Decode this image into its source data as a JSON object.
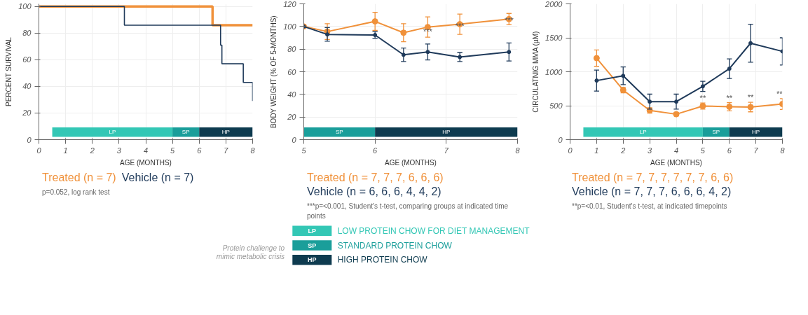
{
  "chart_data": [
    {
      "type": "step",
      "xlabel": "AGE (MONTHS)",
      "ylabel": "PERCENT SURVIVAL",
      "xlim": [
        0,
        8
      ],
      "xticks": [
        0,
        1,
        2,
        3,
        4,
        5,
        6,
        7,
        8
      ],
      "ylim": [
        0,
        102
      ],
      "yticks": [
        0,
        20,
        40,
        60,
        80,
        100
      ],
      "grid": true,
      "legend": "bottom",
      "series": [
        {
          "name": "Treated (n = 7)",
          "color": "#f0913a",
          "x": [
            0,
            6.5,
            8
          ],
          "values": [
            100,
            86,
            86
          ]
        },
        {
          "name": "Vehicle (n = 7)",
          "color": "#1f3a5a",
          "x": [
            0,
            3.2,
            6.8,
            6.85,
            7.65,
            8
          ],
          "values": [
            100,
            86,
            71,
            57,
            43,
            29
          ]
        }
      ],
      "bands": [
        {
          "axis": "x",
          "from": 0.5,
          "to": 5,
          "label": "LP",
          "color": "#33c7b5"
        },
        {
          "axis": "x",
          "from": 5,
          "to": 6,
          "label": "SP",
          "color": "#1a9e9a"
        },
        {
          "axis": "x",
          "from": 6,
          "to": 8,
          "label": "HP",
          "color": "#0e3b4f"
        }
      ],
      "annotations": [
        "p=0.052, log rank test"
      ]
    },
    {
      "type": "line",
      "xlabel": "AGE (MONTHS)",
      "ylabel": "BODY WEIGHT (% OF 5-MONTHS)",
      "marker": "circle",
      "xlim": [
        5,
        8
      ],
      "xticks": [
        5,
        6,
        7,
        8
      ],
      "ylim": [
        0,
        120
      ],
      "yticks": [
        0,
        20,
        40,
        60,
        80,
        100,
        120
      ],
      "grid": true,
      "legend": "bottom",
      "x": [
        5,
        5.33,
        6,
        6.4,
        6.74,
        7.19,
        7.88
      ],
      "series": [
        {
          "name": "Treated (n = 7, 7, 7, 6, 6, 6)",
          "color": "#f0913a",
          "values": [
            100,
            95.5,
            104.5,
            94.5,
            99.5,
            102,
            106.5
          ],
          "errors": [
            null,
            7,
            8,
            8,
            9,
            9,
            5
          ]
        },
        {
          "name": "Vehicle (n = 6, 6, 6, 4, 4, 2)",
          "color": "#1f3a5a",
          "values": [
            100,
            93,
            92.5,
            75,
            77.5,
            73,
            77.5
          ],
          "errors": [
            null,
            6,
            3,
            6,
            7,
            4,
            8
          ]
        }
      ],
      "bands": [
        {
          "axis": "x",
          "from": 5,
          "to": 6,
          "label": "SP",
          "color": "#1a9e9a"
        },
        {
          "axis": "x",
          "from": 6,
          "to": 8,
          "label": "HP",
          "color": "#0e3b4f"
        }
      ],
      "annotations": [
        {
          "text": "***",
          "x": 6.74,
          "y": 91
        },
        {
          "text": "***",
          "x": 7.19,
          "y": 96
        },
        {
          "text": "***",
          "x": 7.88,
          "y": 101
        },
        "***p=<0.001, Student's t-test, comparing groups at indicated time points"
      ]
    },
    {
      "type": "line",
      "xlabel": "AGE (MONTHS)",
      "ylabel": "CIRCULATNIG MMA (µM)",
      "marker": "circle",
      "xlim": [
        0,
        8
      ],
      "xticks": [
        0,
        1,
        2,
        3,
        4,
        5,
        6,
        7,
        8
      ],
      "ylim": [
        0,
        2000
      ],
      "yticks": [
        0,
        500,
        1000,
        1500,
        2000
      ],
      "grid": true,
      "legend": "bottom",
      "x": [
        1,
        2,
        3,
        4,
        5,
        6,
        6.8,
        8
      ],
      "series": [
        {
          "name": "Treated (n = 7, 7, 7, 7, 7, 7, 6, 6)",
          "color": "#f0913a",
          "values": [
            1200,
            730,
            430,
            375,
            495,
            485,
            480,
            525
          ],
          "errors": [
            120,
            40,
            40,
            25,
            45,
            60,
            70,
            80
          ]
        },
        {
          "name": "Vehicle (n = 7, 7, 7, 6, 6, 6, 4, 2)",
          "color": "#1f3a5a",
          "values": [
            870,
            940,
            560,
            560,
            785,
            1045,
            1420,
            1300
          ],
          "errors": [
            155,
            130,
            110,
            110,
            75,
            145,
            280,
            200
          ]
        }
      ],
      "bands": [
        {
          "axis": "x",
          "from": 0.5,
          "to": 5,
          "label": "LP",
          "color": "#33c7b5"
        },
        {
          "axis": "x",
          "from": 5,
          "to": 6,
          "label": "SP",
          "color": "#1a9e9a"
        },
        {
          "axis": "x",
          "from": 6,
          "to": 8,
          "label": "HP",
          "color": "#0e3b4f"
        }
      ],
      "annotations": [
        {
          "text": "**",
          "x": 5,
          "y": 540
        },
        {
          "text": "**",
          "x": 6,
          "y": 545
        },
        {
          "text": "**",
          "x": 6.8,
          "y": 550
        },
        {
          "text": "**",
          "x": 8,
          "y": 605
        },
        "**p=<0.01, Student's t-test, at indicated timepoints"
      ]
    },
    {
      "type": "other",
      "categories": [
        "LP",
        "SP",
        "HP"
      ],
      "colors": [
        "#33c7b5",
        "#1a9e9a",
        "#0e3b4f"
      ],
      "annotations": [
        "LOW PROTEIN CHOW FOR DIET MANAGEMENT",
        "STANDARD PROTEIN CHOW",
        "HIGH PROTEIN CHOW",
        "Protein challenge to mimic metabolic crisis"
      ]
    }
  ]
}
